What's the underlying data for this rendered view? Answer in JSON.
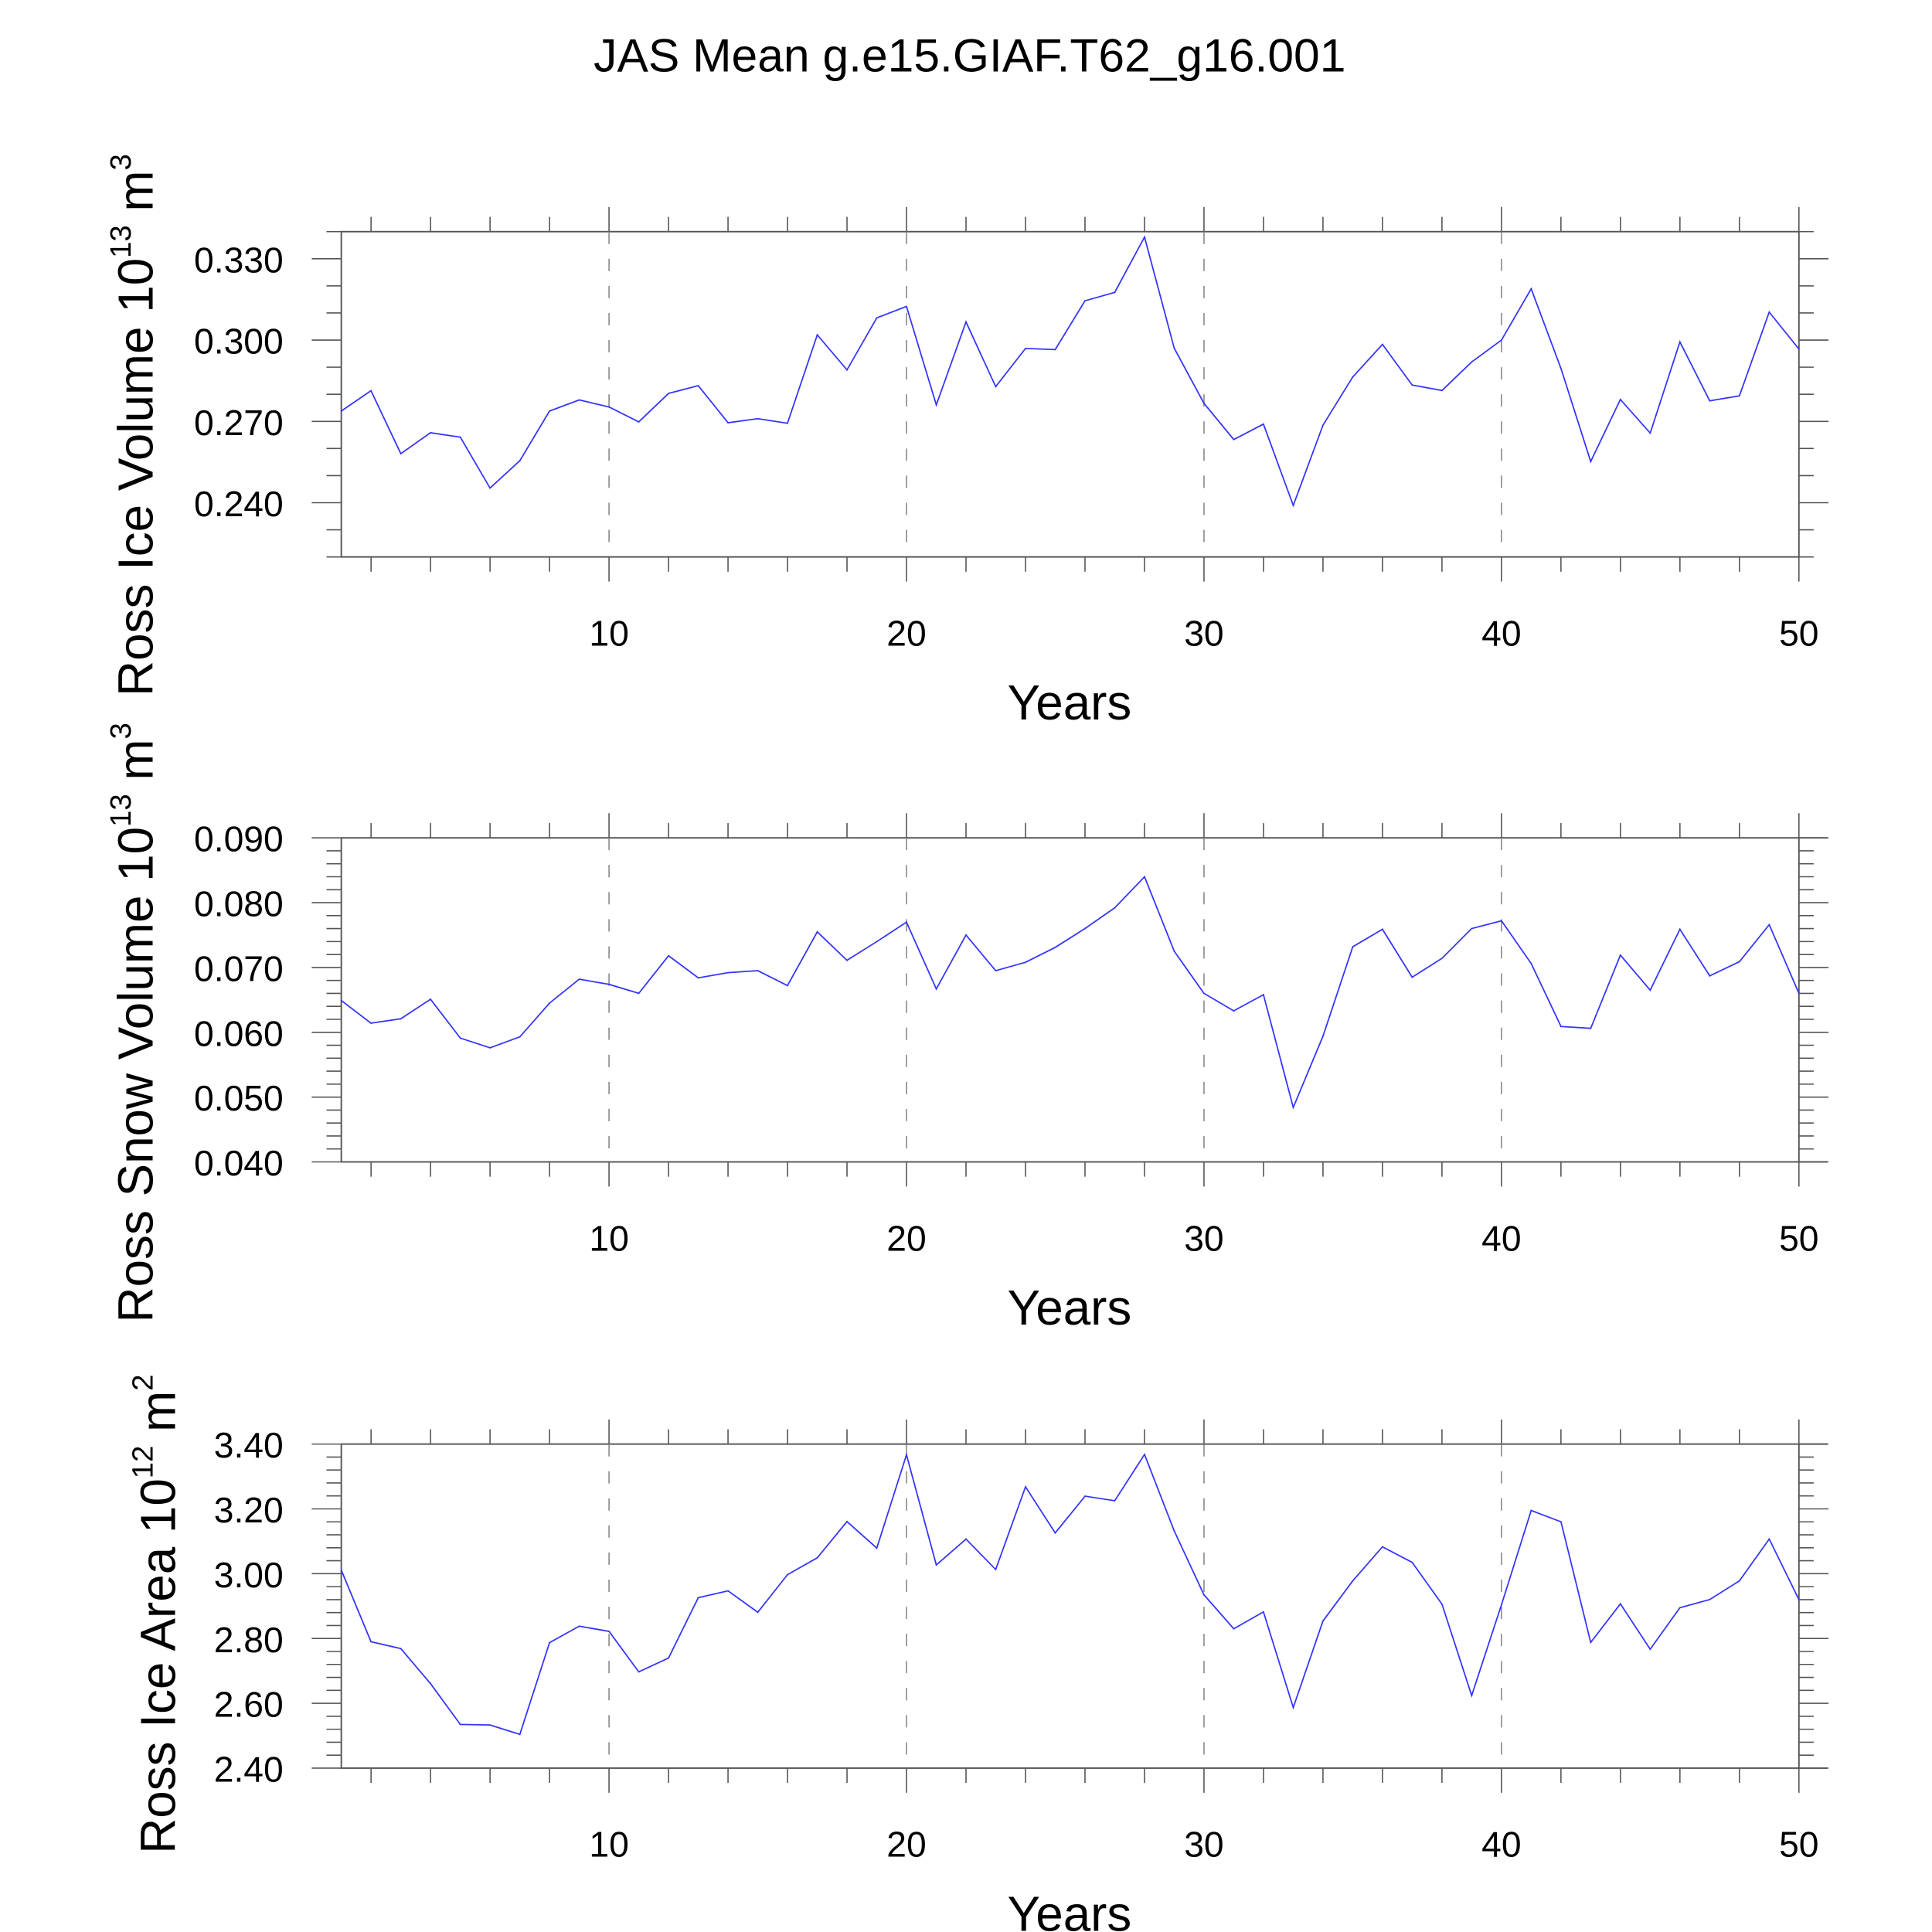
{
  "title": "JAS Mean g.e15.GIAF.T62_g16.001",
  "colors": {
    "line": "#3333ff",
    "axis": "#000000",
    "grid": "#888888"
  },
  "chart_data": [
    {
      "type": "line",
      "xlabel": "Years",
      "ylabel": {
        "text": "Ross Ice Volume 10",
        "exp": "13",
        "unit": " m",
        "unit_exp": "3"
      },
      "xlim": [
        1,
        50
      ],
      "ylim": [
        0.22,
        0.34
      ],
      "xticks": [
        10,
        20,
        30,
        40,
        50
      ],
      "xtick_labels": [
        "10",
        "20",
        "30",
        "40",
        "50"
      ],
      "yticks": [
        0.24,
        0.27,
        0.3,
        0.33
      ],
      "ytick_labels": [
        "0.240",
        "0.270",
        "0.300",
        "0.330"
      ],
      "yminor_step": 0.01,
      "grid": "vertical dashed at major x ticks",
      "x": [
        1,
        2,
        3,
        4,
        5,
        6,
        7,
        8,
        9,
        10,
        11,
        12,
        13,
        14,
        15,
        16,
        17,
        18,
        19,
        20,
        21,
        22,
        23,
        24,
        25,
        26,
        27,
        28,
        29,
        30,
        31,
        32,
        33,
        34,
        35,
        36,
        37,
        38,
        39,
        40,
        41,
        42,
        43,
        44,
        45,
        46,
        47,
        48,
        49,
        50
      ],
      "values": [
        0.2738,
        0.2813,
        0.2581,
        0.2658,
        0.2642,
        0.2454,
        0.2555,
        0.2738,
        0.2779,
        0.2753,
        0.2698,
        0.2803,
        0.2832,
        0.2695,
        0.271,
        0.2693,
        0.3019,
        0.289,
        0.3082,
        0.3124,
        0.2761,
        0.3067,
        0.2828,
        0.2969,
        0.2965,
        0.3145,
        0.3176,
        0.338,
        0.297,
        0.2767,
        0.2633,
        0.269,
        0.239,
        0.2686,
        0.2864,
        0.2984,
        0.2834,
        0.2814,
        0.2919,
        0.3,
        0.3189,
        0.2895,
        0.2552,
        0.2781,
        0.2657,
        0.2993,
        0.2776,
        0.2794,
        0.3103,
        0.2967
      ]
    },
    {
      "type": "line",
      "xlabel": "Years",
      "ylabel": {
        "text": "Ross Snow Volume 10",
        "exp": "13",
        "unit": " m",
        "unit_exp": "3"
      },
      "xlim": [
        1,
        50
      ],
      "ylim": [
        0.04,
        0.09
      ],
      "xticks": [
        10,
        20,
        30,
        40,
        50
      ],
      "xtick_labels": [
        "10",
        "20",
        "30",
        "40",
        "50"
      ],
      "yticks": [
        0.04,
        0.05,
        0.06,
        0.07,
        0.08,
        0.09
      ],
      "ytick_labels": [
        "0.040",
        "0.050",
        "0.060",
        "0.070",
        "0.080",
        "0.090"
      ],
      "yminor_step": 0.002,
      "grid": "vertical dashed at major x ticks",
      "x": [
        1,
        2,
        3,
        4,
        5,
        6,
        7,
        8,
        9,
        10,
        11,
        12,
        13,
        14,
        15,
        16,
        17,
        18,
        19,
        20,
        21,
        22,
        23,
        24,
        25,
        26,
        27,
        28,
        29,
        30,
        31,
        32,
        33,
        34,
        35,
        36,
        37,
        38,
        39,
        40,
        41,
        42,
        43,
        44,
        45,
        46,
        47,
        48,
        49,
        50
      ],
      "values": [
        0.0649,
        0.0614,
        0.0621,
        0.0651,
        0.0591,
        0.0576,
        0.0593,
        0.0645,
        0.0682,
        0.0674,
        0.066,
        0.0718,
        0.0684,
        0.0692,
        0.0695,
        0.0672,
        0.0755,
        0.0711,
        0.074,
        0.077,
        0.0667,
        0.075,
        0.0695,
        0.0708,
        0.0731,
        0.076,
        0.0792,
        0.084,
        0.0725,
        0.066,
        0.0633,
        0.0658,
        0.0484,
        0.0594,
        0.0732,
        0.0759,
        0.0685,
        0.0714,
        0.076,
        0.0772,
        0.0706,
        0.0609,
        0.0606,
        0.0719,
        0.0665,
        0.0759,
        0.0687,
        0.0709,
        0.0766,
        0.066
      ]
    },
    {
      "type": "line",
      "xlabel": "Years",
      "ylabel": {
        "text": "Ross Ice Area 10",
        "exp": "12",
        "unit": " m",
        "unit_exp": "2"
      },
      "xlim": [
        1,
        50
      ],
      "ylim": [
        2.4,
        3.4
      ],
      "xticks": [
        10,
        20,
        30,
        40,
        50
      ],
      "xtick_labels": [
        "10",
        "20",
        "30",
        "40",
        "50"
      ],
      "yticks": [
        2.4,
        2.6,
        2.8,
        3.0,
        3.2,
        3.4
      ],
      "ytick_labels": [
        "2.40",
        "2.60",
        "2.80",
        "3.00",
        "3.20",
        "3.40"
      ],
      "yminor_step": 0.04,
      "grid": "vertical dashed at major x ticks",
      "x": [
        1,
        2,
        3,
        4,
        5,
        6,
        7,
        8,
        9,
        10,
        11,
        12,
        13,
        14,
        15,
        16,
        17,
        18,
        19,
        20,
        21,
        22,
        23,
        24,
        25,
        26,
        27,
        28,
        29,
        30,
        31,
        32,
        33,
        34,
        35,
        36,
        37,
        38,
        39,
        40,
        41,
        42,
        43,
        44,
        45,
        46,
        47,
        48,
        49,
        50
      ],
      "values": [
        3.011,
        2.79,
        2.769,
        2.661,
        2.535,
        2.533,
        2.504,
        2.787,
        2.838,
        2.822,
        2.697,
        2.74,
        2.926,
        2.947,
        2.881,
        2.997,
        3.049,
        3.161,
        3.079,
        3.367,
        3.027,
        3.107,
        3.013,
        3.268,
        3.126,
        3.239,
        3.225,
        3.368,
        3.132,
        2.935,
        2.83,
        2.882,
        2.587,
        2.854,
        2.978,
        3.083,
        3.035,
        2.906,
        2.624,
        2.904,
        3.195,
        3.16,
        2.788,
        2.907,
        2.767,
        2.895,
        2.92,
        2.978,
        3.107,
        2.92
      ]
    }
  ]
}
